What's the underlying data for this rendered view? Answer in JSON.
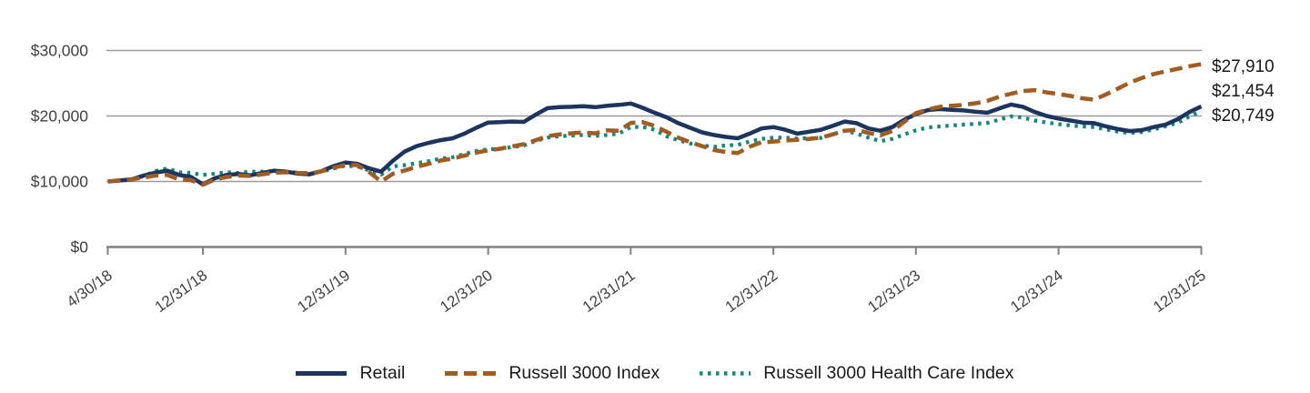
{
  "chart_data": {
    "type": "line",
    "title": "",
    "xlabel": "",
    "ylabel": "",
    "ylim": [
      0,
      32000
    ],
    "grid": "horizontal",
    "legend_position": "bottom",
    "x_unit": "month-end dates, monthly points",
    "x_tick_labels": [
      "4/30/18",
      "12/31/18",
      "12/31/19",
      "12/31/20",
      "12/31/21",
      "12/31/22",
      "12/31/23",
      "12/31/24",
      "12/31/25"
    ],
    "x_tick_month_index": [
      0,
      8,
      20,
      32,
      44,
      56,
      68,
      80,
      92
    ],
    "y_tick_labels": [
      "$0",
      "$10,000",
      "$20,000",
      "$30,000"
    ],
    "y_tick_values": [
      0,
      10000,
      20000,
      30000
    ],
    "grid_color": "#9B9B9B",
    "axis_color": "#808080",
    "series": [
      {
        "name": "Retail",
        "color": "#1C355E",
        "style": "solid",
        "end_label": "$21,454",
        "end_value": 21454,
        "values": [
          10000,
          10150,
          10300,
          10900,
          11350,
          11650,
          11000,
          10700,
          9550,
          10500,
          11000,
          11150,
          10950,
          11300,
          11650,
          11500,
          11200,
          11100,
          11600,
          12350,
          12900,
          12700,
          12000,
          11500,
          13200,
          14600,
          15400,
          15900,
          16300,
          16600,
          17300,
          18200,
          19000,
          19050,
          19150,
          19100,
          20200,
          21200,
          21350,
          21400,
          21500,
          21350,
          21550,
          21700,
          21900,
          21250,
          20500,
          19800,
          18900,
          18200,
          17500,
          17100,
          16800,
          16600,
          17300,
          18100,
          18300,
          17900,
          17300,
          17600,
          17900,
          18500,
          19150,
          18900,
          18100,
          17750,
          18300,
          19400,
          20300,
          20900,
          21050,
          20950,
          20850,
          20650,
          20500,
          21150,
          21750,
          21400,
          20600,
          20000,
          19600,
          19300,
          19000,
          18900,
          18400,
          18000,
          17700,
          17850,
          18300,
          18700,
          19500,
          20600,
          21454
        ]
      },
      {
        "name": "Russell 3000 Index",
        "color": "#A05C21",
        "style": "dashed",
        "end_label": "$27,910",
        "end_value": 27910,
        "values": [
          10000,
          10200,
          10350,
          10600,
          10900,
          11000,
          10300,
          10200,
          9500,
          10300,
          10700,
          10900,
          10850,
          11100,
          11350,
          11400,
          11300,
          11250,
          11550,
          12100,
          12550,
          12500,
          11400,
          10000,
          11200,
          11700,
          12250,
          12700,
          13200,
          13500,
          13950,
          14400,
          14750,
          15000,
          15350,
          15700,
          16300,
          16900,
          17200,
          17350,
          17500,
          17350,
          17800,
          17750,
          18950,
          19050,
          18500,
          17600,
          16700,
          16000,
          15400,
          14800,
          14500,
          14350,
          15300,
          16000,
          16100,
          16250,
          16350,
          16500,
          16700,
          17200,
          17750,
          17900,
          17400,
          17050,
          17700,
          19100,
          20450,
          21000,
          21400,
          21550,
          21700,
          21950,
          22300,
          22950,
          23400,
          23800,
          23950,
          23600,
          23350,
          23050,
          22700,
          22500,
          23300,
          24200,
          25100,
          25800,
          26400,
          26800,
          27200,
          27600,
          27910
        ]
      },
      {
        "name": "Russell 3000 Health Care Index",
        "color": "#12877B",
        "style": "dotted",
        "end_label": "$20,749",
        "end_value": 20749,
        "values": [
          10000,
          10100,
          10300,
          10800,
          11600,
          12000,
          11400,
          11300,
          11000,
          11200,
          11400,
          11300,
          11500,
          11500,
          11600,
          11500,
          11350,
          11200,
          11500,
          12000,
          12400,
          12300,
          11700,
          11050,
          12300,
          12500,
          12800,
          13100,
          13500,
          13700,
          14200,
          14650,
          14900,
          15000,
          15250,
          15500,
          16200,
          16700,
          16900,
          17000,
          17100,
          16950,
          17100,
          17300,
          18300,
          18350,
          17900,
          16900,
          16300,
          15800,
          15500,
          15300,
          15500,
          15600,
          16100,
          16500,
          16700,
          16700,
          16550,
          16600,
          16650,
          17200,
          17750,
          17300,
          16700,
          16150,
          16500,
          17200,
          17800,
          18250,
          18400,
          18550,
          18700,
          18800,
          18950,
          19450,
          19950,
          19750,
          19300,
          19000,
          18750,
          18550,
          18400,
          18300,
          17950,
          17600,
          17400,
          17550,
          17950,
          18450,
          18950,
          19900,
          20749
        ]
      }
    ],
    "end_labels_top_to_bottom": [
      "$27,910",
      "$21,454",
      "$20,749"
    ]
  }
}
